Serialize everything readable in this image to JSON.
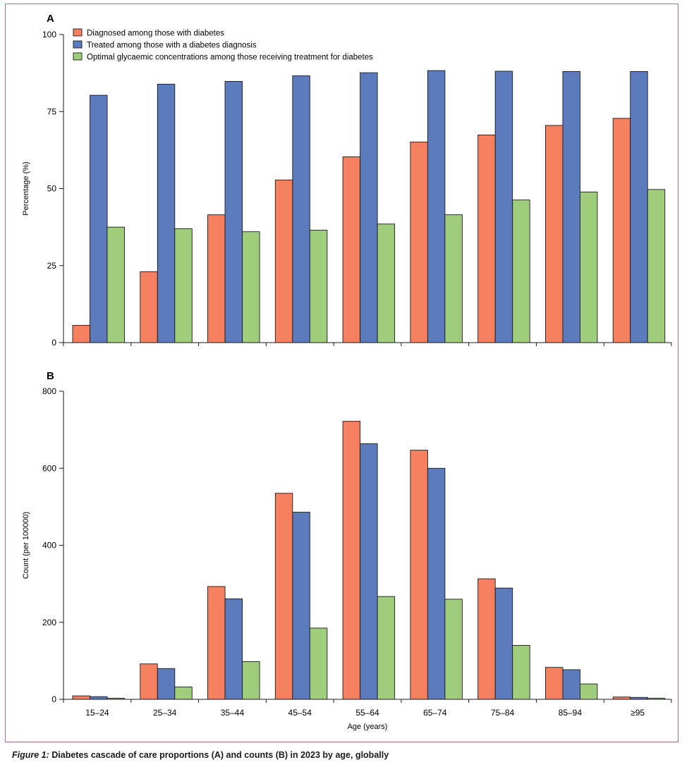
{
  "chart_data": [
    {
      "panel": "A",
      "type": "bar",
      "categories": [
        "15–24",
        "25–34",
        "35–44",
        "45–54",
        "55–64",
        "65–74",
        "75–84",
        "85–94",
        "≥95"
      ],
      "series": [
        {
          "name": "Diagnosed among those with diabetes",
          "color": "#f4805f",
          "values": [
            5.6,
            23.0,
            41.5,
            52.8,
            60.3,
            65.1,
            67.4,
            70.5,
            72.8
          ]
        },
        {
          "name": "Treated among those with a diabetes diagnosis",
          "color": "#5b7bbd",
          "values": [
            80.3,
            83.9,
            84.8,
            86.6,
            87.6,
            88.3,
            88.1,
            88.0,
            88.0
          ]
        },
        {
          "name": "Optimal glycaemic concentrations among those receiving treatment for diabetes",
          "color": "#9fcd7c",
          "values": [
            37.5,
            37.0,
            36.0,
            36.5,
            38.5,
            41.5,
            46.3,
            48.9,
            49.7
          ]
        }
      ],
      "yticks": [
        0,
        25,
        50,
        75,
        100
      ],
      "ylim": [
        0,
        100
      ],
      "ylabel": "Percentage (%)",
      "xlabel": "",
      "legend": "top-left"
    },
    {
      "panel": "B",
      "type": "bar",
      "categories": [
        "15–24",
        "25–34",
        "35–44",
        "45–54",
        "55–64",
        "65–74",
        "75–84",
        "85–94",
        "≥95"
      ],
      "series": [
        {
          "name": "Diagnosed among those with diabetes",
          "color": "#f4805f",
          "values": [
            9,
            92,
            293,
            535,
            722,
            647,
            313,
            83,
            6
          ]
        },
        {
          "name": "Treated among those with a diabetes diagnosis",
          "color": "#5b7bbd",
          "values": [
            7,
            80,
            261,
            486,
            664,
            600,
            289,
            77,
            5
          ]
        },
        {
          "name": "Optimal glycaemic concentrations among those receiving treatment for diabetes",
          "color": "#9fcd7c",
          "values": [
            3,
            32,
            98,
            185,
            267,
            260,
            140,
            40,
            3
          ]
        }
      ],
      "yticks": [
        0,
        200,
        400,
        600,
        800
      ],
      "ylim": [
        0,
        800
      ],
      "ylabel": "Count (per 100000)",
      "xlabel": "Age (years)"
    }
  ],
  "caption": {
    "lead": "Figure 1:",
    "text": " Diabetes cascade of care proportions (A) and counts (B) in 2023 by age, globally"
  },
  "colors": {
    "frame": "#b06a7a",
    "axis": "#1a1a1a"
  }
}
